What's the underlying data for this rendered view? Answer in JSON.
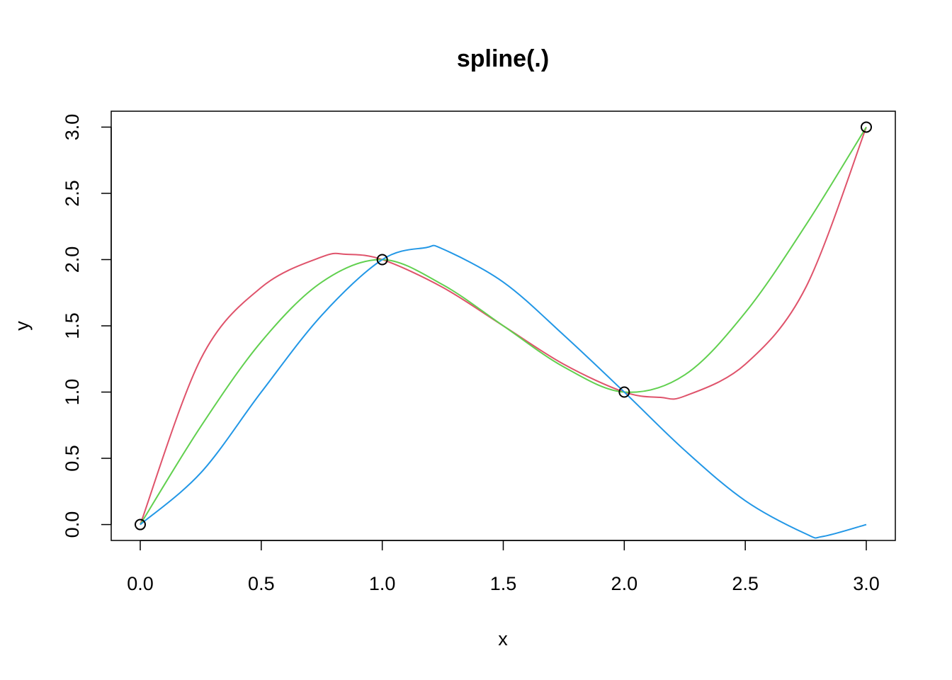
{
  "chart_data": {
    "type": "line",
    "title": "spline(.)",
    "xlabel": "x",
    "ylabel": "y",
    "xlim": [
      -0.12,
      3.12
    ],
    "ylim": [
      -0.12,
      3.12
    ],
    "x_ticks": [
      0.0,
      0.5,
      1.0,
      1.5,
      2.0,
      2.5,
      3.0
    ],
    "x_tick_labels": [
      "0.0",
      "0.5",
      "1.0",
      "1.5",
      "2.0",
      "2.5",
      "3.0"
    ],
    "y_ticks": [
      0.0,
      0.5,
      1.0,
      1.5,
      2.0,
      2.5,
      3.0
    ],
    "y_tick_labels": [
      "0.0",
      "0.5",
      "1.0",
      "1.5",
      "2.0",
      "2.5",
      "3.0"
    ],
    "grid": false,
    "points": {
      "x": [
        0,
        1,
        2,
        3
      ],
      "y": [
        0,
        2,
        1,
        3
      ]
    },
    "series": [
      {
        "color": "#DF536B",
        "x": [
          0,
          0.25,
          0.5,
          0.75,
          0.85,
          1.0,
          1.25,
          1.5,
          1.75,
          2.0,
          2.15,
          2.25,
          2.5,
          2.75,
          3.0
        ],
        "y": [
          0,
          1.25,
          1.79,
          2.02,
          2.04,
          2.0,
          1.79,
          1.5,
          1.21,
          1.0,
          0.96,
          0.97,
          1.21,
          1.79,
          3.0
        ]
      },
      {
        "color": "#61D04F",
        "x": [
          0,
          0.25,
          0.5,
          0.75,
          1.0,
          1.25,
          1.5,
          1.75,
          2.0,
          2.25,
          2.5,
          2.75,
          3.0
        ],
        "y": [
          0,
          0.74,
          1.38,
          1.83,
          2.0,
          1.81,
          1.5,
          1.19,
          1.0,
          1.13,
          1.6,
          2.26,
          3.0
        ]
      },
      {
        "color": "#2297E6",
        "x": [
          0,
          0.25,
          0.5,
          0.75,
          1.0,
          1.18,
          1.25,
          1.5,
          1.75,
          2.0,
          2.25,
          2.5,
          2.75,
          2.82,
          3.0
        ],
        "y": [
          0,
          0.39,
          1.0,
          1.58,
          2.0,
          2.09,
          2.08,
          1.83,
          1.43,
          1.0,
          0.56,
          0.18,
          -0.07,
          -0.09,
          0.0
        ]
      }
    ]
  }
}
